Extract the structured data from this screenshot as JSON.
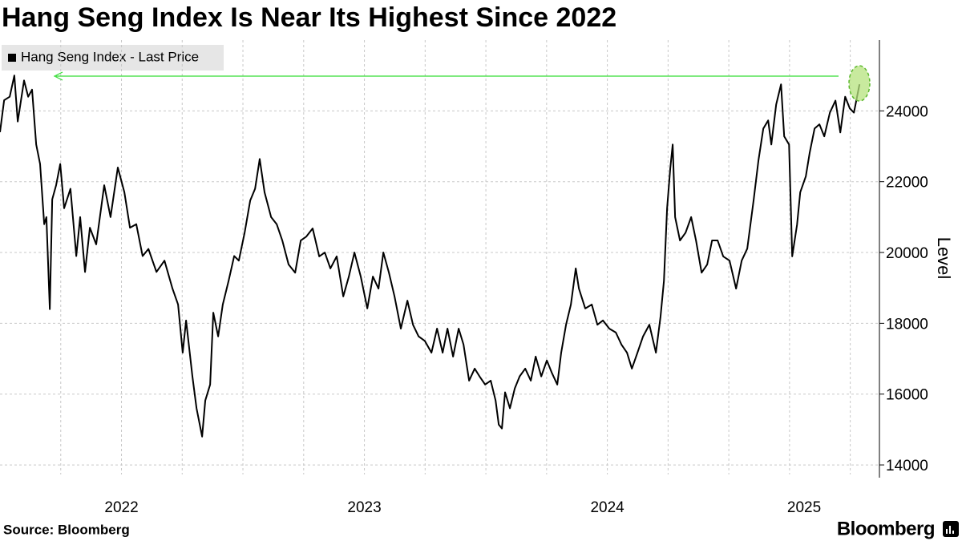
{
  "chart_data": {
    "type": "line",
    "title": "Hang Seng Index Is Near Its Highest Since 2022",
    "source": "Source: Bloomberg",
    "brand": "Bloomberg",
    "y_label": "Level",
    "x": [
      2022.0,
      2022.017,
      2022.04,
      2022.059,
      2022.073,
      2022.099,
      2022.116,
      2022.132,
      2022.149,
      2022.165,
      2022.182,
      2022.191,
      2022.205,
      2022.215,
      2022.231,
      2022.248,
      2022.264,
      2022.29,
      2022.314,
      2022.33,
      2022.35,
      2022.37,
      2022.396,
      2022.429,
      2022.455,
      2022.485,
      2022.512,
      2022.535,
      2022.561,
      2022.587,
      2022.611,
      2022.644,
      2022.677,
      2022.71,
      2022.733,
      2022.752,
      2022.766,
      2022.792,
      2022.809,
      2022.832,
      2022.845,
      2022.865,
      2022.878,
      2022.898,
      2022.917,
      2022.941,
      2022.964,
      2022.983,
      2023.007,
      2023.03,
      2023.05,
      2023.069,
      2023.089,
      2023.116,
      2023.139,
      2023.162,
      2023.188,
      2023.215,
      2023.238,
      2023.261,
      2023.287,
      2023.314,
      2023.337,
      2023.36,
      2023.386,
      2023.413,
      2023.436,
      2023.459,
      2023.485,
      2023.512,
      2023.535,
      2023.558,
      2023.578,
      2023.601,
      2023.624,
      2023.65,
      2023.677,
      2023.7,
      2023.723,
      2023.749,
      2023.776,
      2023.799,
      2023.822,
      2023.842,
      2023.865,
      2023.888,
      2023.908,
      2023.931,
      2023.954,
      2023.974,
      2023.997,
      2024.02,
      2024.04,
      2024.053,
      2024.066,
      2024.079,
      2024.099,
      2024.119,
      2024.139,
      2024.162,
      2024.185,
      2024.205,
      2024.228,
      2024.251,
      2024.271,
      2024.294,
      2024.31,
      2024.33,
      2024.35,
      2024.37,
      2024.383,
      2024.409,
      2024.436,
      2024.459,
      2024.482,
      2024.508,
      2024.535,
      2024.558,
      2024.581,
      2024.601,
      2024.624,
      2024.647,
      2024.673,
      2024.7,
      2024.719,
      2024.733,
      2024.746,
      2024.759,
      2024.769,
      2024.779,
      2024.799,
      2024.822,
      2024.845,
      2024.865,
      2024.888,
      2024.911,
      2024.931,
      2024.954,
      2024.977,
      2025.003,
      2025.03,
      2025.053,
      2025.076,
      2025.102,
      2025.122,
      2025.142,
      2025.162,
      2025.175,
      2025.195,
      2025.215,
      2025.228,
      2025.248,
      2025.261,
      2025.281,
      2025.294,
      2025.317,
      2025.333,
      2025.353,
      2025.373,
      2025.393,
      2025.416,
      2025.439,
      2025.459,
      2025.479,
      2025.498,
      2025.515,
      2025.538
    ],
    "series": [
      {
        "name": "Hang Seng Index - Last Price",
        "color": "#000000",
        "values": [
          23400,
          24300,
          24400,
          25000,
          23700,
          24860,
          24400,
          24600,
          23050,
          22500,
          20800,
          21000,
          18400,
          21500,
          21900,
          22500,
          21250,
          21800,
          19900,
          21000,
          19450,
          20700,
          20230,
          21900,
          21000,
          22400,
          21700,
          20700,
          20800,
          19900,
          20100,
          19450,
          19770,
          18980,
          18530,
          17170,
          18080,
          16500,
          15600,
          14800,
          15820,
          16270,
          18300,
          17630,
          18530,
          19200,
          19900,
          19770,
          20560,
          21470,
          21800,
          22640,
          21700,
          21000,
          20800,
          20340,
          19660,
          19430,
          20340,
          20450,
          20680,
          19890,
          20000,
          19550,
          19890,
          18760,
          19320,
          20000,
          19320,
          18420,
          19320,
          18980,
          20000,
          19430,
          18760,
          17850,
          18640,
          17960,
          17630,
          17500,
          17170,
          17850,
          17170,
          17850,
          17060,
          17850,
          17400,
          16380,
          16720,
          16500,
          16270,
          16380,
          15820,
          15140,
          15030,
          16050,
          15600,
          16160,
          16500,
          16720,
          16380,
          17060,
          16500,
          16950,
          16610,
          16270,
          17170,
          17960,
          18530,
          19550,
          18980,
          18420,
          18530,
          17960,
          18080,
          17850,
          17740,
          17400,
          17170,
          16720,
          17170,
          17630,
          17960,
          17170,
          18190,
          19200,
          21250,
          22370,
          23050,
          21000,
          20340,
          20560,
          21000,
          20340,
          19430,
          19660,
          20340,
          20340,
          19890,
          19770,
          18980,
          19770,
          20110,
          21470,
          22600,
          23500,
          23730,
          23050,
          24180,
          24750,
          23280,
          23050,
          19890,
          20790,
          21700,
          22150,
          22820,
          23500,
          23620,
          23280,
          23950,
          24290,
          23390,
          24400,
          24070,
          23950,
          24750
        ]
      }
    ],
    "xlim": [
      2022,
      2025.62
    ],
    "xticks": [
      {
        "value": 2022.5,
        "label": "2022"
      },
      {
        "value": 2023.5,
        "label": "2023"
      },
      {
        "value": 2024.5,
        "label": "2024"
      },
      {
        "value": 2025.31,
        "label": "2025"
      }
    ],
    "xgrid": [
      2022.25,
      2022.5,
      2022.75,
      2023,
      2023.25,
      2023.5,
      2023.75,
      2024,
      2024.25,
      2024.5,
      2024.75,
      2025,
      2025.25,
      2025.5
    ],
    "ylim": [
      13730,
      26000
    ],
    "yticks": [
      14000,
      16000,
      18000,
      20000,
      22000,
      24000
    ],
    "grid": true,
    "legend": "top-left"
  }
}
